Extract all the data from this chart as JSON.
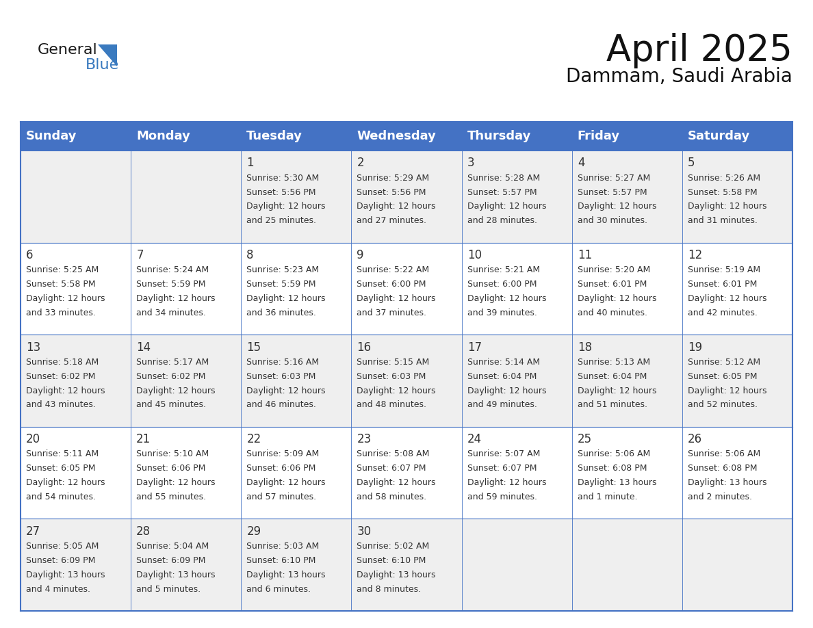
{
  "title": "April 2025",
  "subtitle": "Dammam, Saudi Arabia",
  "header_bg": "#4472C4",
  "header_text_color": "#FFFFFF",
  "cell_bg_odd": "#EFEFEF",
  "cell_bg_even": "#FFFFFF",
  "border_color": "#4472C4",
  "text_color": "#333333",
  "days_of_week": [
    "Sunday",
    "Monday",
    "Tuesday",
    "Wednesday",
    "Thursday",
    "Friday",
    "Saturday"
  ],
  "calendar_data": [
    [
      {
        "day": "",
        "lines": []
      },
      {
        "day": "",
        "lines": []
      },
      {
        "day": "1",
        "lines": [
          "Sunrise: 5:30 AM",
          "Sunset: 5:56 PM",
          "Daylight: 12 hours",
          "and 25 minutes."
        ]
      },
      {
        "day": "2",
        "lines": [
          "Sunrise: 5:29 AM",
          "Sunset: 5:56 PM",
          "Daylight: 12 hours",
          "and 27 minutes."
        ]
      },
      {
        "day": "3",
        "lines": [
          "Sunrise: 5:28 AM",
          "Sunset: 5:57 PM",
          "Daylight: 12 hours",
          "and 28 minutes."
        ]
      },
      {
        "day": "4",
        "lines": [
          "Sunrise: 5:27 AM",
          "Sunset: 5:57 PM",
          "Daylight: 12 hours",
          "and 30 minutes."
        ]
      },
      {
        "day": "5",
        "lines": [
          "Sunrise: 5:26 AM",
          "Sunset: 5:58 PM",
          "Daylight: 12 hours",
          "and 31 minutes."
        ]
      }
    ],
    [
      {
        "day": "6",
        "lines": [
          "Sunrise: 5:25 AM",
          "Sunset: 5:58 PM",
          "Daylight: 12 hours",
          "and 33 minutes."
        ]
      },
      {
        "day": "7",
        "lines": [
          "Sunrise: 5:24 AM",
          "Sunset: 5:59 PM",
          "Daylight: 12 hours",
          "and 34 minutes."
        ]
      },
      {
        "day": "8",
        "lines": [
          "Sunrise: 5:23 AM",
          "Sunset: 5:59 PM",
          "Daylight: 12 hours",
          "and 36 minutes."
        ]
      },
      {
        "day": "9",
        "lines": [
          "Sunrise: 5:22 AM",
          "Sunset: 6:00 PM",
          "Daylight: 12 hours",
          "and 37 minutes."
        ]
      },
      {
        "day": "10",
        "lines": [
          "Sunrise: 5:21 AM",
          "Sunset: 6:00 PM",
          "Daylight: 12 hours",
          "and 39 minutes."
        ]
      },
      {
        "day": "11",
        "lines": [
          "Sunrise: 5:20 AM",
          "Sunset: 6:01 PM",
          "Daylight: 12 hours",
          "and 40 minutes."
        ]
      },
      {
        "day": "12",
        "lines": [
          "Sunrise: 5:19 AM",
          "Sunset: 6:01 PM",
          "Daylight: 12 hours",
          "and 42 minutes."
        ]
      }
    ],
    [
      {
        "day": "13",
        "lines": [
          "Sunrise: 5:18 AM",
          "Sunset: 6:02 PM",
          "Daylight: 12 hours",
          "and 43 minutes."
        ]
      },
      {
        "day": "14",
        "lines": [
          "Sunrise: 5:17 AM",
          "Sunset: 6:02 PM",
          "Daylight: 12 hours",
          "and 45 minutes."
        ]
      },
      {
        "day": "15",
        "lines": [
          "Sunrise: 5:16 AM",
          "Sunset: 6:03 PM",
          "Daylight: 12 hours",
          "and 46 minutes."
        ]
      },
      {
        "day": "16",
        "lines": [
          "Sunrise: 5:15 AM",
          "Sunset: 6:03 PM",
          "Daylight: 12 hours",
          "and 48 minutes."
        ]
      },
      {
        "day": "17",
        "lines": [
          "Sunrise: 5:14 AM",
          "Sunset: 6:04 PM",
          "Daylight: 12 hours",
          "and 49 minutes."
        ]
      },
      {
        "day": "18",
        "lines": [
          "Sunrise: 5:13 AM",
          "Sunset: 6:04 PM",
          "Daylight: 12 hours",
          "and 51 minutes."
        ]
      },
      {
        "day": "19",
        "lines": [
          "Sunrise: 5:12 AM",
          "Sunset: 6:05 PM",
          "Daylight: 12 hours",
          "and 52 minutes."
        ]
      }
    ],
    [
      {
        "day": "20",
        "lines": [
          "Sunrise: 5:11 AM",
          "Sunset: 6:05 PM",
          "Daylight: 12 hours",
          "and 54 minutes."
        ]
      },
      {
        "day": "21",
        "lines": [
          "Sunrise: 5:10 AM",
          "Sunset: 6:06 PM",
          "Daylight: 12 hours",
          "and 55 minutes."
        ]
      },
      {
        "day": "22",
        "lines": [
          "Sunrise: 5:09 AM",
          "Sunset: 6:06 PM",
          "Daylight: 12 hours",
          "and 57 minutes."
        ]
      },
      {
        "day": "23",
        "lines": [
          "Sunrise: 5:08 AM",
          "Sunset: 6:07 PM",
          "Daylight: 12 hours",
          "and 58 minutes."
        ]
      },
      {
        "day": "24",
        "lines": [
          "Sunrise: 5:07 AM",
          "Sunset: 6:07 PM",
          "Daylight: 12 hours",
          "and 59 minutes."
        ]
      },
      {
        "day": "25",
        "lines": [
          "Sunrise: 5:06 AM",
          "Sunset: 6:08 PM",
          "Daylight: 13 hours",
          "and 1 minute."
        ]
      },
      {
        "day": "26",
        "lines": [
          "Sunrise: 5:06 AM",
          "Sunset: 6:08 PM",
          "Daylight: 13 hours",
          "and 2 minutes."
        ]
      }
    ],
    [
      {
        "day": "27",
        "lines": [
          "Sunrise: 5:05 AM",
          "Sunset: 6:09 PM",
          "Daylight: 13 hours",
          "and 4 minutes."
        ]
      },
      {
        "day": "28",
        "lines": [
          "Sunrise: 5:04 AM",
          "Sunset: 6:09 PM",
          "Daylight: 13 hours",
          "and 5 minutes."
        ]
      },
      {
        "day": "29",
        "lines": [
          "Sunrise: 5:03 AM",
          "Sunset: 6:10 PM",
          "Daylight: 13 hours",
          "and 6 minutes."
        ]
      },
      {
        "day": "30",
        "lines": [
          "Sunrise: 5:02 AM",
          "Sunset: 6:10 PM",
          "Daylight: 13 hours",
          "and 8 minutes."
        ]
      },
      {
        "day": "",
        "lines": []
      },
      {
        "day": "",
        "lines": []
      },
      {
        "day": "",
        "lines": []
      }
    ]
  ],
  "logo_text_general": "General",
  "logo_text_blue": "Blue",
  "logo_color_general": "#1a1a1a",
  "logo_color_blue": "#3a7abf",
  "title_fontsize": 38,
  "subtitle_fontsize": 20,
  "header_fontsize": 13,
  "day_num_fontsize": 12,
  "cell_text_fontsize": 9
}
